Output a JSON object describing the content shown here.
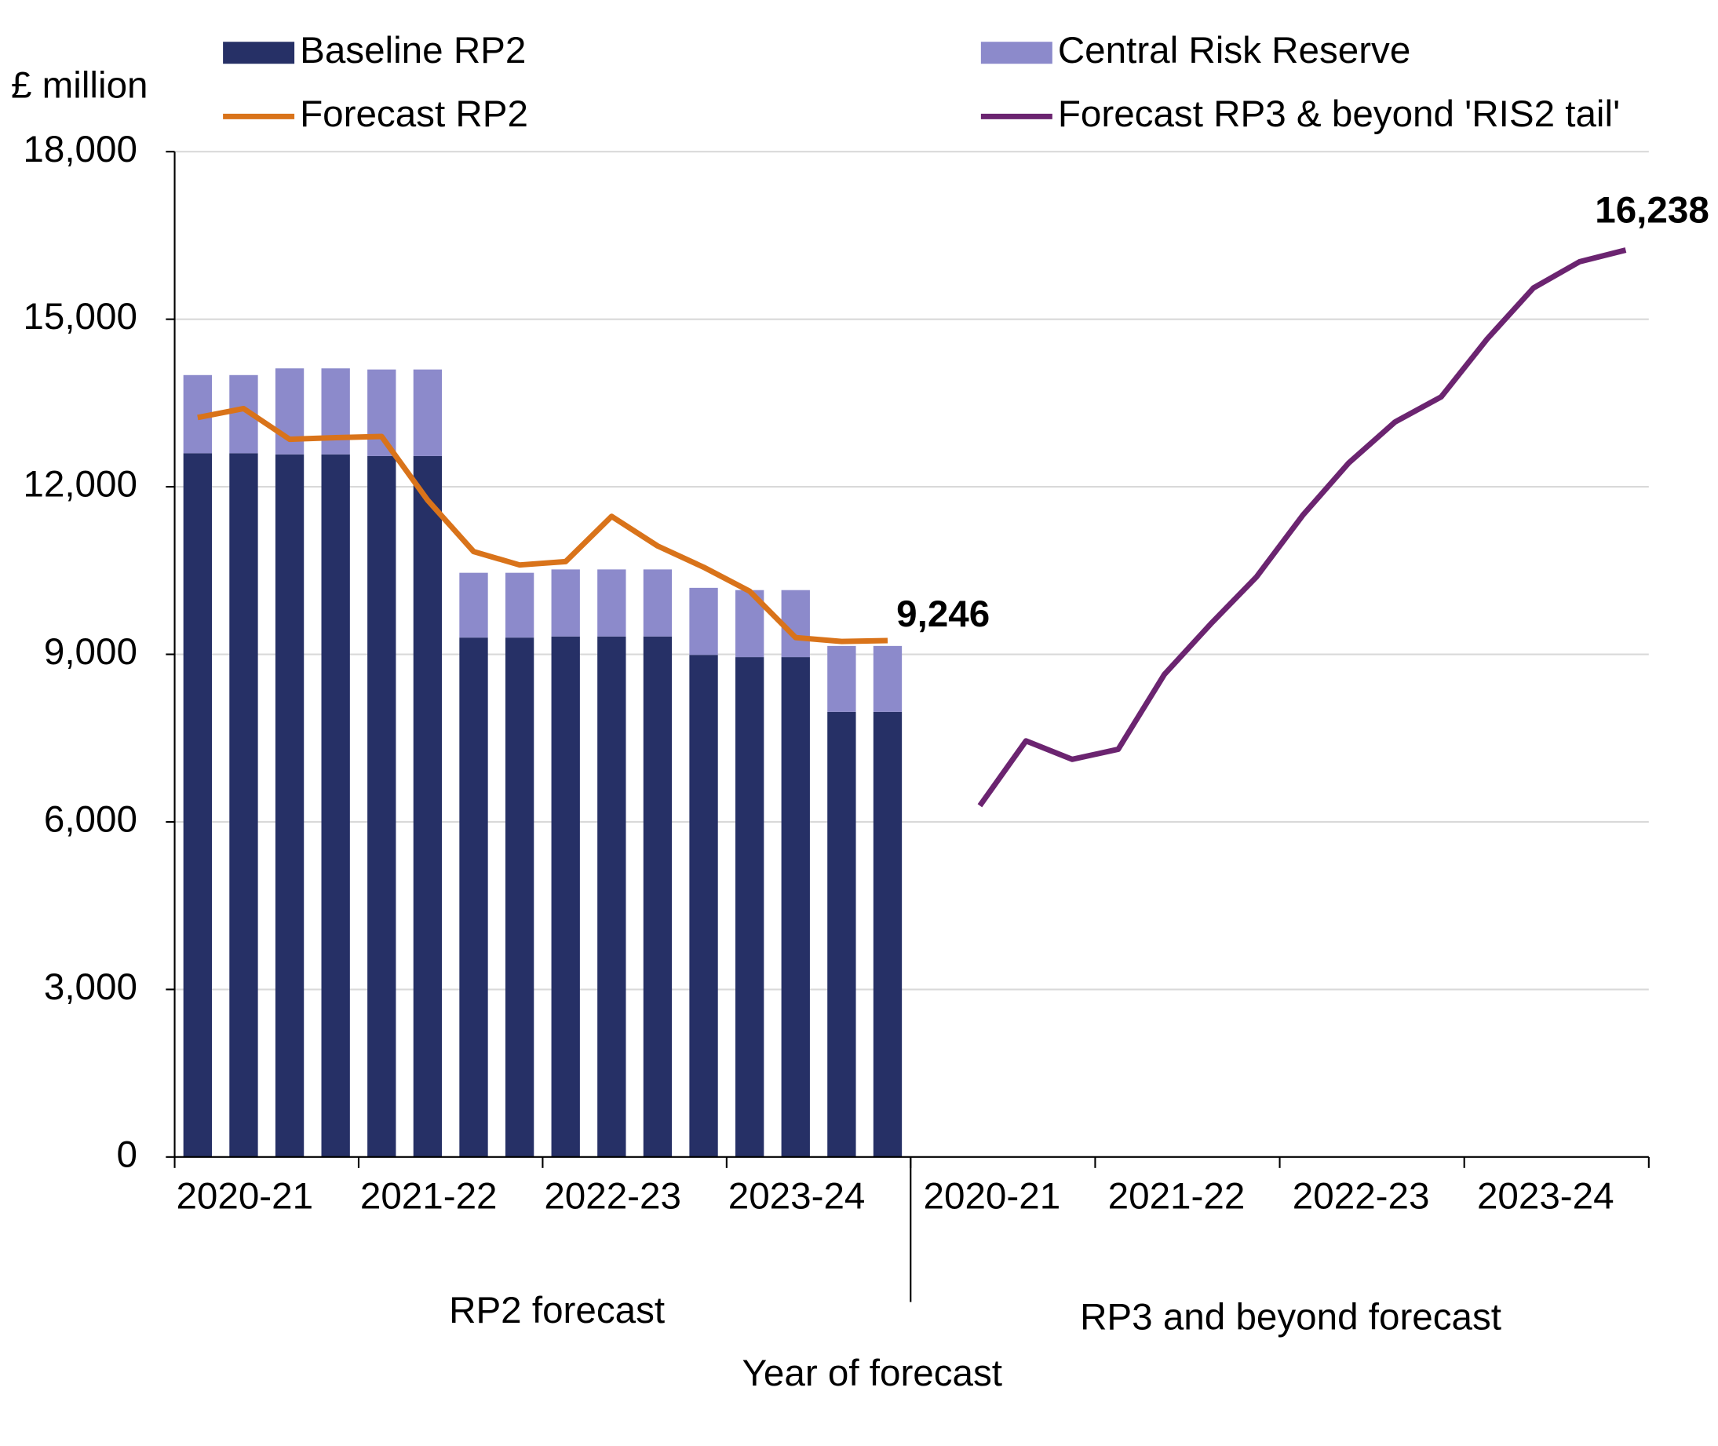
{
  "chart_data": {
    "type": "bar",
    "y_label": "£ million",
    "x_label": "Year of forecast",
    "ylim": [
      0,
      18000
    ],
    "yticks": [
      0,
      {
        "value": 3000,
        "label": "3,000"
      },
      {
        "value": 6000,
        "label": "6,000"
      },
      {
        "value": 9000,
        "label": "9,000"
      },
      {
        "value": 12000,
        "label": "12,000"
      },
      {
        "value": 15000,
        "label": "15,000"
      },
      {
        "value": 18000,
        "label": "18,000"
      }
    ],
    "grid": true,
    "panels": [
      {
        "label": "RP2 forecast",
        "groups": [
          "2020-21",
          "2021-22",
          "2022-23",
          "2023-24"
        ]
      },
      {
        "label": "RP3 and beyond forecast",
        "groups": [
          "2020-21",
          "2021-22",
          "2022-23",
          "2023-24"
        ]
      }
    ],
    "series": [
      {
        "name": "Baseline RP2",
        "type": "bar",
        "panel": 0,
        "color": "#263066",
        "values": [
          12600,
          12600,
          12580,
          12580,
          12550,
          12550,
          9300,
          9300,
          9320,
          9320,
          9320,
          8990,
          8950,
          8950,
          7970,
          7970
        ]
      },
      {
        "name": "Central Risk Reserve",
        "type": "bar",
        "panel": 0,
        "color": "#8c8acb",
        "values": [
          1400,
          1400,
          1540,
          1540,
          1550,
          1550,
          1160,
          1160,
          1200,
          1200,
          1200,
          1200,
          1200,
          1200,
          1180,
          1180
        ]
      },
      {
        "name": "Forecast RP2",
        "type": "line",
        "panel": 0,
        "color": "#d9731a",
        "values": [
          13240,
          13400,
          12850,
          12880,
          12900,
          11760,
          10840,
          10600,
          10660,
          11470,
          10940,
          10560,
          10130,
          9300,
          9230,
          9246
        ],
        "value_labels": [
          null,
          null,
          null,
          null,
          null,
          null,
          null,
          null,
          null,
          null,
          null,
          null,
          null,
          null,
          null,
          "9,246"
        ]
      },
      {
        "name": "Forecast RP3 & beyond 'RIS2 tail'",
        "type": "line",
        "panel": 1,
        "color": "#6b2470",
        "values": [
          null,
          6290,
          7450,
          7120,
          7300,
          8640,
          9540,
          10390,
          11490,
          12430,
          13160,
          13610,
          14650,
          15560,
          16030,
          16238
        ],
        "value_labels": [
          null,
          null,
          null,
          null,
          null,
          null,
          null,
          null,
          null,
          null,
          null,
          null,
          null,
          null,
          null,
          "16,238"
        ]
      }
    ]
  }
}
